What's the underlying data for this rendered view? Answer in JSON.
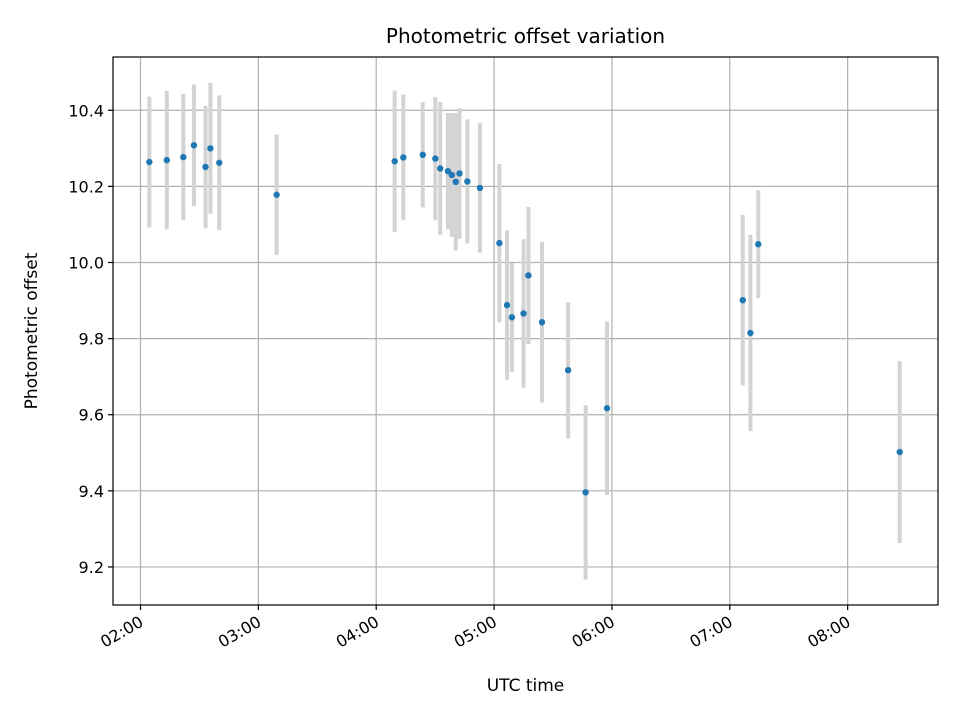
{
  "chart_data": {
    "type": "scatter",
    "title": "Photometric offset variation",
    "xlabel": "UTC time",
    "ylabel": "Photometric offset",
    "xlim": [
      "01:46",
      "08:46"
    ],
    "ylim": [
      9.1,
      10.54
    ],
    "x_ticks": [
      "02:00",
      "03:00",
      "04:00",
      "05:00",
      "06:00",
      "07:00",
      "08:00"
    ],
    "y_ticks": [
      "9.2",
      "9.4",
      "9.6",
      "9.8",
      "10.0",
      "10.2",
      "10.4"
    ],
    "y_tick_values": [
      9.2,
      9.4,
      9.6,
      9.8,
      10.0,
      10.2,
      10.4
    ],
    "grid": true,
    "marker_color": "#1f77b4",
    "errorbar_color": "#d3d3d3",
    "series": [
      {
        "points": [
          {
            "t": "02:04.5",
            "y": 10.264,
            "err": 0.172
          },
          {
            "t": "02:13.4",
            "y": 10.269,
            "err": 0.182
          },
          {
            "t": "02:21.8",
            "y": 10.277,
            "err": 0.166
          },
          {
            "t": "02:27.2",
            "y": 10.308,
            "err": 0.16
          },
          {
            "t": "02:33.1",
            "y": 10.251,
            "err": 0.161
          },
          {
            "t": "02:35.6",
            "y": 10.3,
            "err": 0.172
          },
          {
            "t": "02:40.1",
            "y": 10.262,
            "err": 0.177
          },
          {
            "t": "03:09.3",
            "y": 10.178,
            "err": 0.158
          },
          {
            "t": "04:09.4",
            "y": 10.266,
            "err": 0.186
          },
          {
            "t": "04:13.8",
            "y": 10.276,
            "err": 0.165
          },
          {
            "t": "04:23.7",
            "y": 10.283,
            "err": 0.138
          },
          {
            "t": "04:30.1",
            "y": 10.273,
            "err": 0.162
          },
          {
            "t": "04:32.6",
            "y": 10.247,
            "err": 0.175
          },
          {
            "t": "04:36.5",
            "y": 10.24,
            "err": 0.153
          },
          {
            "t": "04:38.5",
            "y": 10.23,
            "err": 0.163
          },
          {
            "t": "04:40.5",
            "y": 10.212,
            "err": 0.18
          },
          {
            "t": "04:42.4",
            "y": 10.234,
            "err": 0.172
          },
          {
            "t": "04:46.4",
            "y": 10.213,
            "err": 0.163
          },
          {
            "t": "04:52.8",
            "y": 10.196,
            "err": 0.17
          },
          {
            "t": "05:02.7",
            "y": 10.051,
            "err": 0.208
          },
          {
            "t": "05:06.6",
            "y": 9.888,
            "err": 0.196
          },
          {
            "t": "05:09.1",
            "y": 9.856,
            "err": 0.143
          },
          {
            "t": "05:15.0",
            "y": 9.866,
            "err": 0.195
          },
          {
            "t": "05:17.5",
            "y": 9.966,
            "err": 0.18
          },
          {
            "t": "05:24.4",
            "y": 9.843,
            "err": 0.211
          },
          {
            "t": "05:37.7",
            "y": 9.717,
            "err": 0.179
          },
          {
            "t": "05:46.6",
            "y": 9.396,
            "err": 0.229
          },
          {
            "t": "05:57.5",
            "y": 9.617,
            "err": 0.228
          },
          {
            "t": "07:06.6",
            "y": 9.901,
            "err": 0.224
          },
          {
            "t": "07:10.5",
            "y": 9.815,
            "err": 0.258
          },
          {
            "t": "07:14.5",
            "y": 10.048,
            "err": 0.142
          },
          {
            "t": "08:26.5",
            "y": 9.502,
            "err": 0.239
          }
        ]
      }
    ]
  }
}
